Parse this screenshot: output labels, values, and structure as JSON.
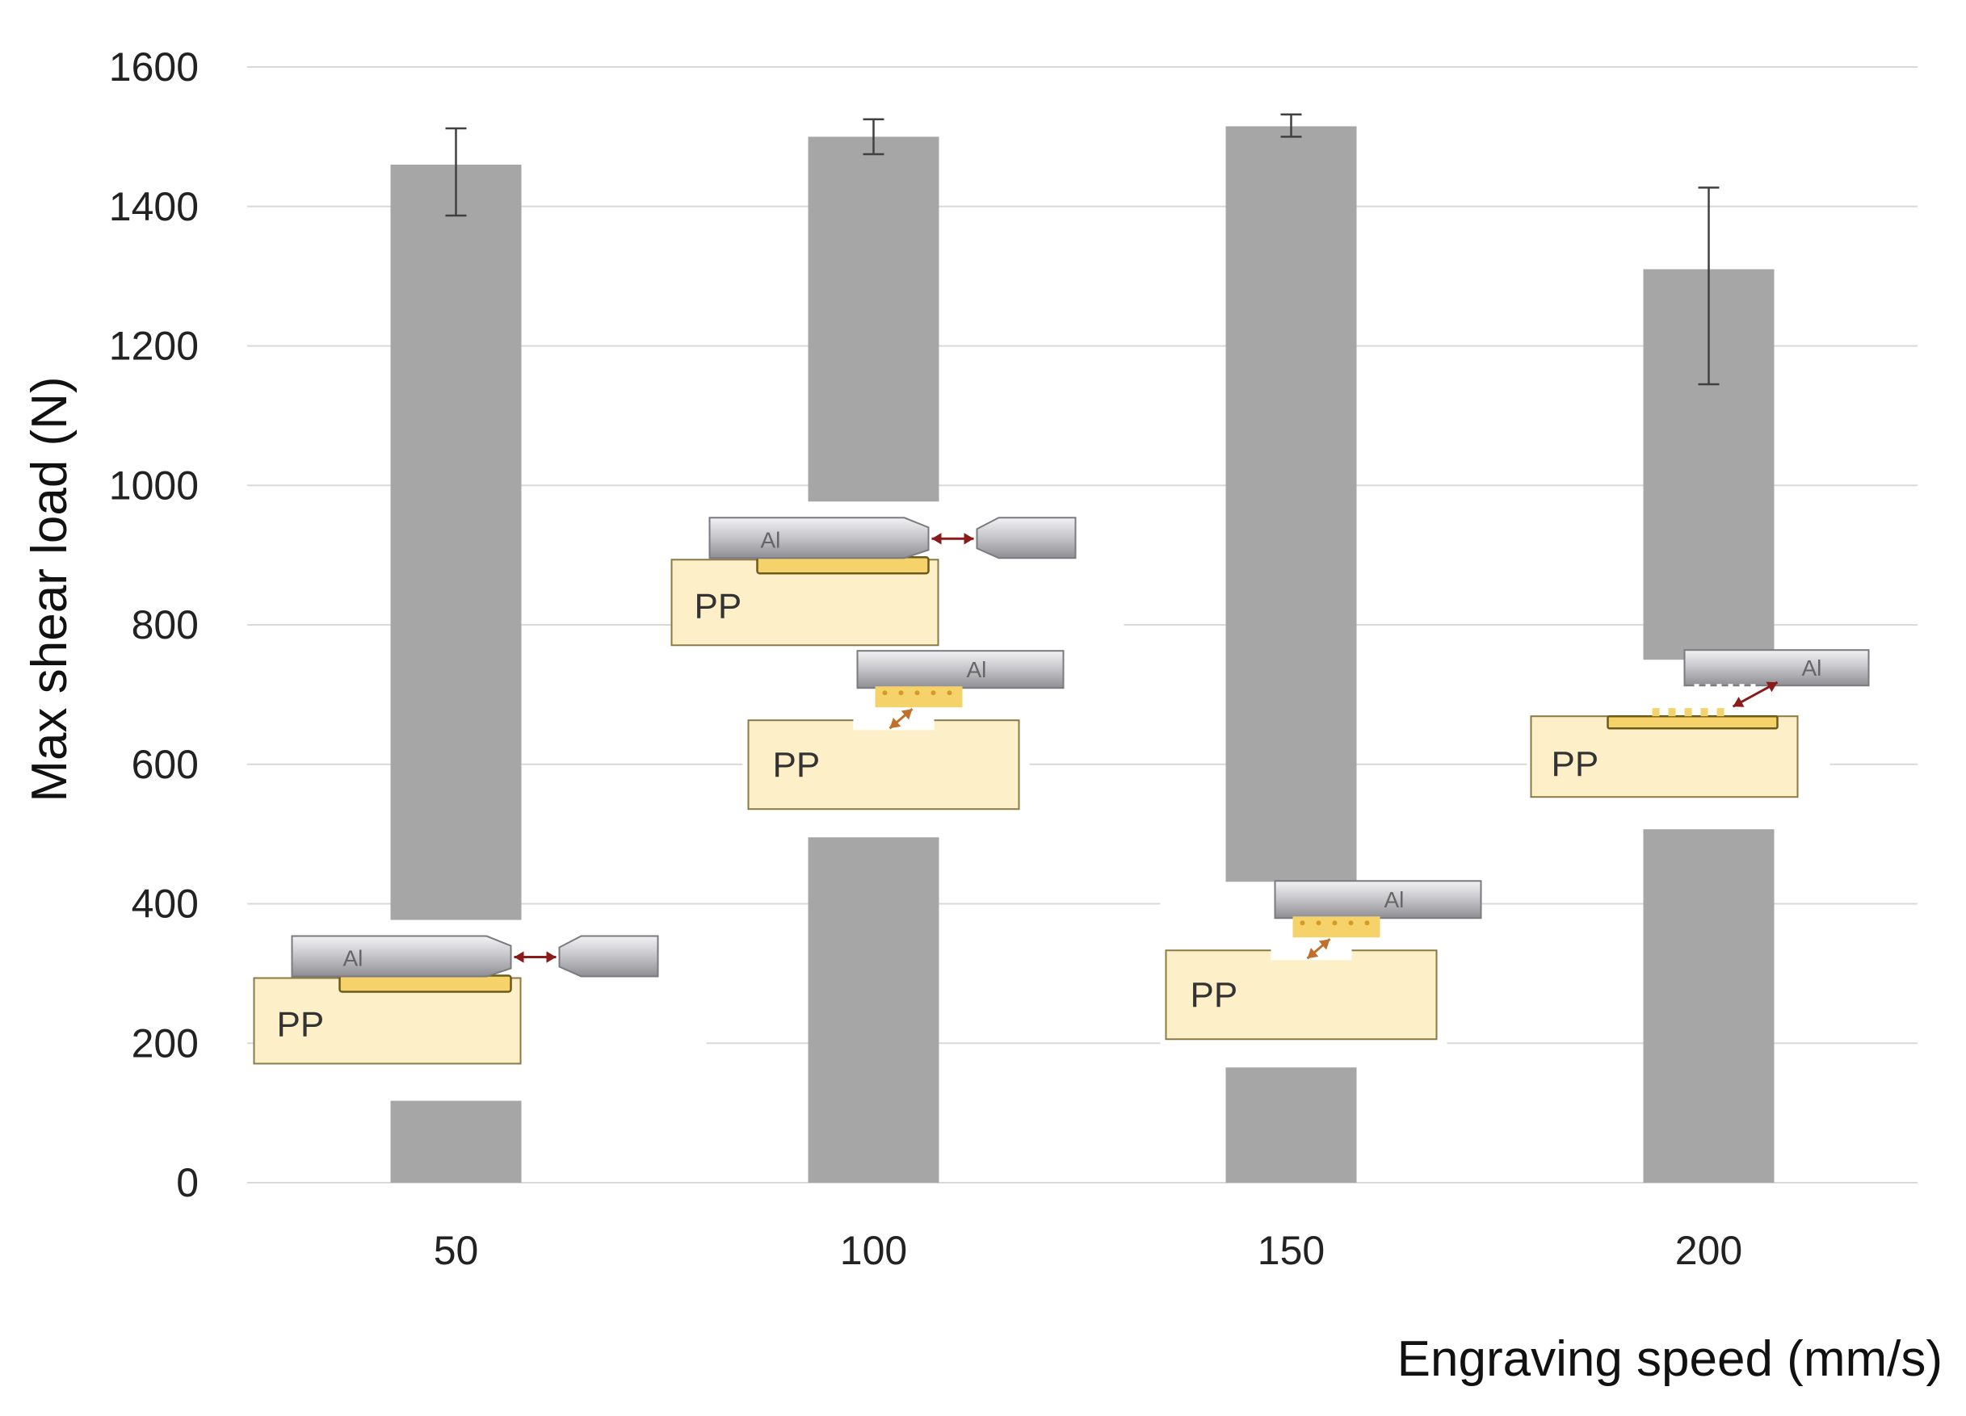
{
  "chart_data": {
    "type": "bar",
    "title": "",
    "xlabel": "Engraving speed (mm/s)",
    "ylabel": "Max shear load (N)",
    "categories": [
      "50",
      "100",
      "150",
      "200"
    ],
    "values": [
      1460,
      1500,
      1515,
      1310
    ],
    "error_low": [
      1387,
      1475,
      1500,
      1145
    ],
    "error_high": [
      1512,
      1525,
      1532,
      1427
    ],
    "ylim": [
      0,
      1600
    ],
    "yticks": [
      0,
      200,
      400,
      600,
      800,
      1000,
      1200,
      1400,
      1600
    ],
    "grid": true,
    "bar_color": "#a6a6a6",
    "insets": [
      {
        "category": "50",
        "kind": "bonded",
        "y_center": 290,
        "pp_label": "PP",
        "al_label": "Al"
      },
      {
        "category": "100",
        "kind": "bonded",
        "y_center": 890,
        "pp_label": "PP",
        "al_label": "Al"
      },
      {
        "category": "100",
        "kind": "engraved",
        "y_center": 640,
        "pp_label": "PP",
        "al_label": "Al"
      },
      {
        "category": "150",
        "kind": "engraved",
        "y_center": 310,
        "pp_label": "PP",
        "al_label": "Al"
      },
      {
        "category": "200",
        "kind": "partial",
        "y_center": 640,
        "pp_label": "PP",
        "al_label": "Al"
      }
    ]
  }
}
